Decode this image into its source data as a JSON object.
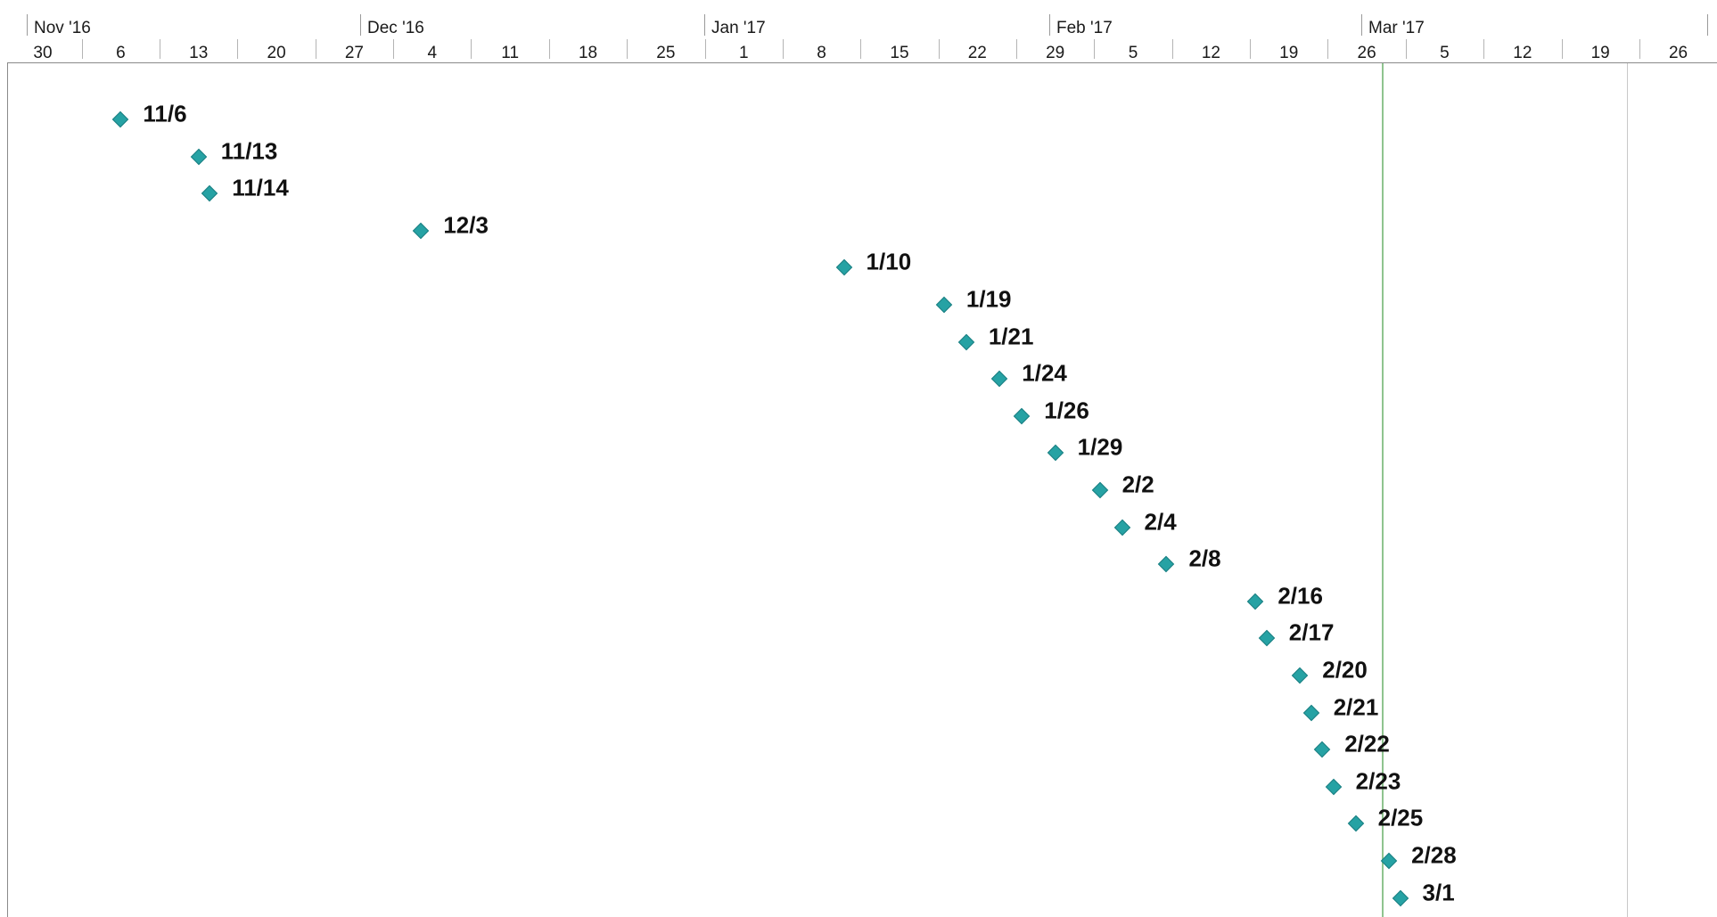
{
  "timescale": {
    "months": [
      "Nov '16",
      "Dec '16",
      "Jan '17",
      "Feb '17",
      "Mar '17"
    ],
    "weeks": [
      "30",
      "6",
      "13",
      "20",
      "27",
      "4",
      "11",
      "18",
      "25",
      "1",
      "8",
      "15",
      "22",
      "29",
      "5",
      "12",
      "19",
      "26",
      "5",
      "12",
      "19",
      "26"
    ]
  },
  "milestones": [
    {
      "label": "11/6"
    },
    {
      "label": "11/13"
    },
    {
      "label": "11/14"
    },
    {
      "label": "12/3"
    },
    {
      "label": "1/10"
    },
    {
      "label": "1/19"
    },
    {
      "label": "1/21"
    },
    {
      "label": "1/24"
    },
    {
      "label": "1/26"
    },
    {
      "label": "1/29"
    },
    {
      "label": "2/2"
    },
    {
      "label": "2/4"
    },
    {
      "label": "2/8"
    },
    {
      "label": "2/16"
    },
    {
      "label": "2/17"
    },
    {
      "label": "2/20"
    },
    {
      "label": "2/21"
    },
    {
      "label": "2/22"
    },
    {
      "label": "2/23"
    },
    {
      "label": "2/25"
    },
    {
      "label": "2/28"
    },
    {
      "label": "3/1"
    }
  ],
  "colors": {
    "milestone_fill": "#26a2a4",
    "status_line": "#8fc48f"
  }
}
